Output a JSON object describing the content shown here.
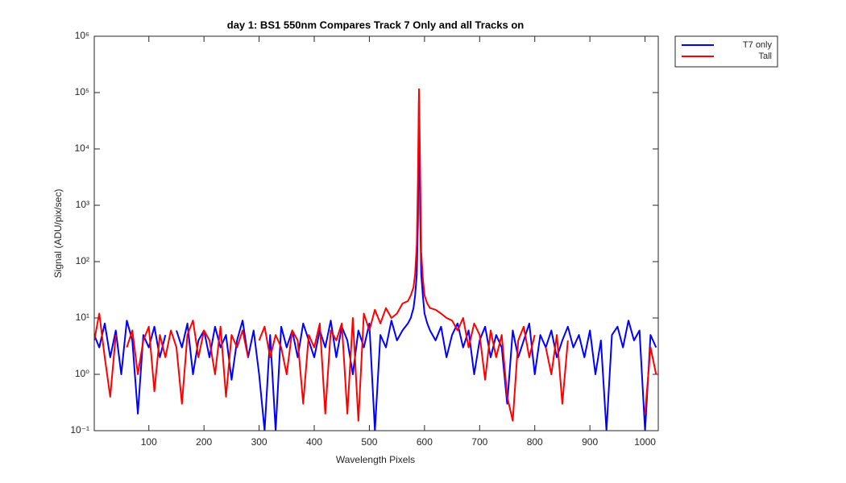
{
  "chart_data": {
    "type": "line",
    "title": "day 1: BS1  550nm  Compares Track 7 Only and all Tracks on",
    "xlabel": "Wavelength Pixels",
    "ylabel": "Signal (ADU/pix/sec)",
    "log_y": true,
    "legend": "outside-top-right",
    "xlim": [
      1,
      1024
    ],
    "ylim": [
      0.1,
      1000000
    ],
    "xticks": [
      100,
      200,
      300,
      400,
      500,
      600,
      700,
      800,
      900,
      1000
    ],
    "yticks": [
      {
        "value": 0.1,
        "label": "10⁻¹"
      },
      {
        "value": 1,
        "label": "10⁰"
      },
      {
        "value": 10,
        "label": "10¹"
      },
      {
        "value": 100,
        "label": "10²"
      },
      {
        "value": 1000,
        "label": "10³"
      },
      {
        "value": 10000,
        "label": "10⁴"
      },
      {
        "value": 100000,
        "label": "10⁵"
      },
      {
        "value": 1000000,
        "label": "10⁶"
      }
    ],
    "x": [
      1,
      10,
      20,
      30,
      40,
      50,
      60,
      70,
      80,
      90,
      100,
      110,
      120,
      130,
      140,
      150,
      160,
      170,
      180,
      190,
      200,
      210,
      220,
      230,
      240,
      250,
      260,
      270,
      280,
      290,
      300,
      310,
      320,
      330,
      340,
      350,
      360,
      370,
      380,
      390,
      400,
      410,
      420,
      430,
      440,
      450,
      460,
      470,
      480,
      490,
      500,
      510,
      520,
      530,
      540,
      550,
      560,
      570,
      575,
      580,
      583,
      586,
      588,
      590,
      592,
      594,
      597,
      600,
      605,
      610,
      620,
      630,
      640,
      650,
      660,
      670,
      680,
      690,
      700,
      710,
      720,
      730,
      740,
      750,
      760,
      770,
      780,
      790,
      800,
      810,
      820,
      830,
      840,
      850,
      860,
      870,
      880,
      890,
      900,
      910,
      920,
      930,
      940,
      950,
      960,
      970,
      980,
      990,
      1000,
      1010,
      1020
    ],
    "series": [
      {
        "name": "T7 only",
        "color": "#0000ff",
        "values": [
          5,
          3,
          8,
          2,
          6,
          1,
          9,
          4,
          0.2,
          5,
          3,
          7,
          2,
          5,
          null,
          6,
          3,
          8,
          1,
          4,
          6,
          2,
          7,
          3,
          5,
          0.8,
          4,
          9,
          2,
          6,
          1,
          0.1,
          5,
          0.1,
          7,
          3,
          6,
          2,
          8,
          4,
          2,
          6,
          3,
          9,
          2,
          7,
          4,
          1,
          6,
          3,
          8,
          0.1,
          5,
          3,
          9,
          4,
          6,
          8,
          10,
          15,
          25,
          60,
          500,
          90000,
          800,
          60,
          25,
          12,
          8,
          6,
          4,
          7,
          2,
          5,
          8,
          3,
          6,
          1,
          4,
          7,
          2,
          5,
          3,
          0.3,
          6,
          2,
          4,
          8,
          1,
          5,
          3,
          6,
          2,
          4,
          7,
          3,
          5,
          2,
          6,
          1,
          4,
          0.1,
          5,
          7,
          3,
          9,
          4,
          6,
          0.1,
          5,
          3
        ]
      },
      {
        "name": "Tall",
        "color": "#ff0000",
        "values": [
          4,
          12,
          2,
          0.4,
          5,
          null,
          3,
          6,
          1,
          4,
          7,
          0.5,
          5,
          2,
          6,
          3,
          0.3,
          5,
          9,
          2,
          6,
          4,
          1,
          7,
          0.4,
          5,
          3,
          6,
          2,
          null,
          4,
          7,
          2,
          5,
          3,
          1,
          6,
          4,
          0.3,
          5,
          3,
          8,
          0.2,
          6,
          4,
          8,
          0.2,
          10,
          0.15,
          12,
          6,
          14,
          8,
          15,
          10,
          12,
          18,
          20,
          25,
          35,
          60,
          200,
          3000,
          115000,
          5000,
          150,
          50,
          25,
          18,
          15,
          14,
          12,
          10,
          9,
          6,
          10,
          3,
          8,
          5,
          0.8,
          6,
          2,
          5,
          0.4,
          0.15,
          4,
          7,
          2,
          5,
          null,
          3,
          1,
          5,
          0.3,
          4,
          null,
          6,
          null,
          null,
          null,
          null,
          null,
          null,
          null,
          null,
          null,
          null,
          null,
          0.2,
          3,
          1
        ]
      }
    ]
  }
}
